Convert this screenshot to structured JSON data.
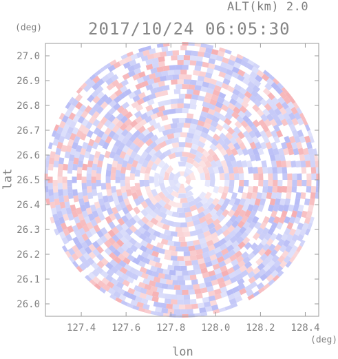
{
  "header": {
    "alt_label": "ALT(km) 2.0",
    "timestamp": "2017/10/24 06:05:30"
  },
  "chart_data": {
    "type": "heatmap",
    "title": "2017/10/24 06:05:30",
    "subtitle": "ALT(km) 2.0",
    "xlabel": "lon",
    "ylabel": "lat",
    "x_unit": "(deg)",
    "y_unit": "(deg)",
    "xlim": [
      127.24,
      128.46
    ],
    "ylim": [
      25.95,
      27.05
    ],
    "x_ticks": [
      "127.4",
      "127.6",
      "127.8",
      "128.0",
      "128.2",
      "128.4"
    ],
    "y_ticks": [
      "27.0",
      "26.9",
      "26.8",
      "26.7",
      "26.6",
      "26.5",
      "26.4",
      "26.3",
      "26.2",
      "26.1",
      "26.0"
    ],
    "center": {
      "lon": 127.85,
      "lat": 26.5
    },
    "colors": {
      "positive": "#f4a0a4",
      "negative": "#a8aef4",
      "neutral": "#ffffff",
      "axis": "#9a9a9a"
    },
    "grid": false
  }
}
